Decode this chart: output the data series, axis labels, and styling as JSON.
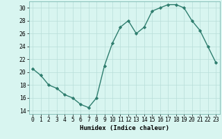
{
  "x": [
    0,
    1,
    2,
    3,
    4,
    5,
    6,
    7,
    8,
    9,
    10,
    11,
    12,
    13,
    14,
    15,
    16,
    17,
    18,
    19,
    20,
    21,
    22,
    23
  ],
  "y": [
    20.5,
    19.5,
    18.0,
    17.5,
    16.5,
    16.0,
    15.0,
    14.5,
    16.0,
    21.0,
    24.5,
    27.0,
    28.0,
    26.0,
    27.0,
    29.5,
    30.0,
    30.5,
    30.5,
    30.0,
    28.0,
    26.5,
    24.0,
    21.5
  ],
  "line_color": "#2e7d6e",
  "marker": "D",
  "marker_size": 2.2,
  "bg_color": "#d8f5f0",
  "grid_color": "#b8ddd8",
  "xlabel": "Humidex (Indice chaleur)",
  "xlim": [
    -0.5,
    23.5
  ],
  "ylim": [
    13.5,
    31.0
  ],
  "yticks": [
    14,
    16,
    18,
    20,
    22,
    24,
    26,
    28,
    30
  ],
  "xticks": [
    0,
    1,
    2,
    3,
    4,
    5,
    6,
    7,
    8,
    9,
    10,
    11,
    12,
    13,
    14,
    15,
    16,
    17,
    18,
    19,
    20,
    21,
    22,
    23
  ],
  "xlabel_fontsize": 6.5,
  "tick_fontsize": 5.8,
  "line_width": 1.0
}
